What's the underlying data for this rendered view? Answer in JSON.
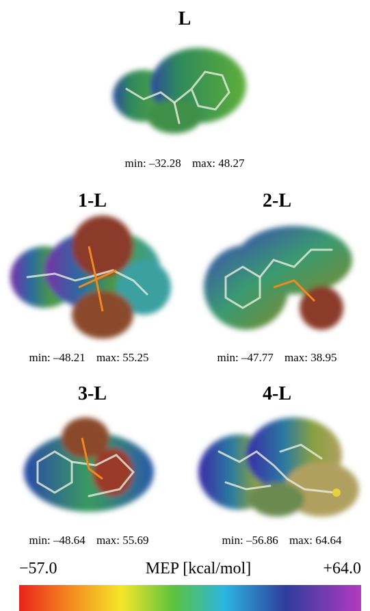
{
  "panels": [
    {
      "label": "L",
      "min_label": "min:",
      "min": "–32.28",
      "max_label": "max:",
      "max": "48.27"
    },
    {
      "label": "1-L",
      "min_label": "min:",
      "min": "–48.21",
      "max_label": "max:",
      "max": "55.25"
    },
    {
      "label": "2-L",
      "min_label": "min:",
      "min": "–47.77",
      "max_label": "max:",
      "max": "38.95"
    },
    {
      "label": "3-L",
      "min_label": "min:",
      "min": "–48.64",
      "max_label": "max:",
      "max": "55.69"
    },
    {
      "label": "4-L",
      "min_label": "min:",
      "min": "–56.86",
      "max_label": "max:",
      "max": "64.64"
    }
  ],
  "colorbar": {
    "min_label": "−57.0",
    "title": "MEP [kcal/mol]",
    "max_label": "+64.0"
  }
}
